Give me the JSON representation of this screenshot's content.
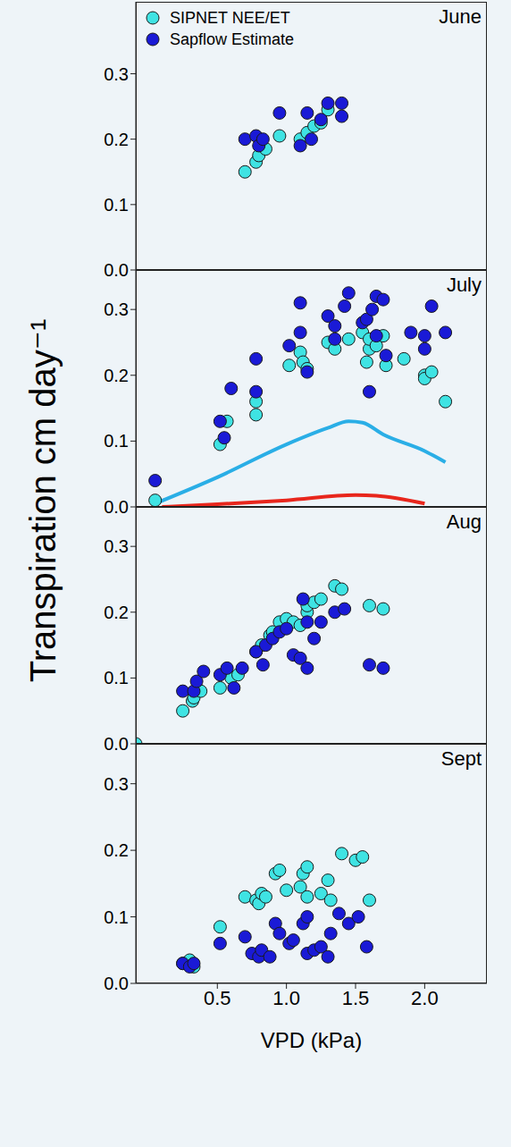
{
  "ylabel": "Transpiration cm day⁻¹",
  "chart_data": [
    {
      "type": "scatter",
      "title": "June",
      "xlim": [
        -0.09,
        2.45
      ],
      "ylim": [
        0,
        0.41
      ],
      "yticks": [
        {
          "value": 0,
          "label": "0.0"
        },
        0.1,
        0.2,
        0.3
      ],
      "tick_labels": "y",
      "legend": "upper left",
      "marker": "circle",
      "series": [
        {
          "name": "SIPNET NEE/ET",
          "color": "#3fe3e3",
          "x": [
            0.7,
            0.78,
            0.8,
            0.85,
            0.95,
            1.1,
            1.15,
            1.2,
            1.25,
            1.3
          ],
          "values": [
            0.15,
            0.165,
            0.175,
            0.185,
            0.205,
            0.2,
            0.21,
            0.22,
            0.225,
            0.245
          ]
        },
        {
          "name": "Sapflow Estimate",
          "color": "#1a1ad6",
          "x": [
            0.7,
            0.78,
            0.8,
            0.83,
            0.95,
            1.1,
            1.15,
            1.18,
            1.25,
            1.3,
            1.4,
            1.4
          ],
          "values": [
            0.2,
            0.205,
            0.19,
            0.2,
            0.24,
            0.19,
            0.24,
            0.2,
            0.23,
            0.255,
            0.255,
            0.235
          ]
        }
      ]
    },
    {
      "type": "scatter",
      "title": "July",
      "xlim": [
        -0.09,
        2.45
      ],
      "ylim": [
        0,
        0.36
      ],
      "yticks": [
        {
          "value": 0,
          "label": "0.0"
        },
        0.1,
        0.2,
        0.3
      ],
      "tick_labels": "y",
      "marker": "circle",
      "series": [
        {
          "name": "SIPNET NEE/ET",
          "color": "#3fe3e3",
          "x": [
            0.05,
            0.52,
            0.57,
            0.78,
            0.78,
            1.02,
            1.1,
            1.12,
            1.15,
            1.3,
            1.35,
            1.45,
            1.55,
            1.58,
            1.6,
            1.6,
            1.65,
            1.7,
            1.72,
            1.85,
            2.0,
            2.0,
            2.05,
            2.15
          ],
          "values": [
            0.01,
            0.095,
            0.13,
            0.14,
            0.16,
            0.215,
            0.235,
            0.22,
            0.21,
            0.25,
            0.24,
            0.255,
            0.265,
            0.22,
            0.24,
            0.255,
            0.245,
            0.26,
            0.215,
            0.225,
            0.2,
            0.195,
            0.205,
            0.16
          ]
        },
        {
          "name": "Sapflow Estimate",
          "color": "#1a1ad6",
          "x": [
            0.05,
            0.52,
            0.55,
            0.6,
            0.78,
            0.78,
            1.02,
            1.1,
            1.1,
            1.15,
            1.3,
            1.35,
            1.35,
            1.42,
            1.45,
            1.55,
            1.58,
            1.6,
            1.62,
            1.65,
            1.65,
            1.7,
            1.72,
            1.9,
            2.0,
            2.0,
            2.05,
            2.15
          ],
          "values": [
            0.04,
            0.13,
            0.105,
            0.18,
            0.225,
            0.175,
            0.245,
            0.31,
            0.265,
            0.205,
            0.29,
            0.255,
            0.275,
            0.305,
            0.325,
            0.28,
            0.285,
            0.175,
            0.3,
            0.26,
            0.32,
            0.315,
            0.23,
            0.265,
            0.26,
            0.24,
            0.305,
            0.265
          ]
        },
        {
          "type": "line",
          "line_style": "solid",
          "color": "#2aaee6",
          "x": [
            0.05,
            0.5,
            1.0,
            1.3,
            1.45,
            1.55,
            1.7,
            2.0,
            2.15
          ],
          "values": [
            0.005,
            0.045,
            0.095,
            0.12,
            0.13,
            0.128,
            0.11,
            0.085,
            0.068
          ]
        },
        {
          "type": "line",
          "line_style": "solid",
          "color": "#e8261c",
          "x": [
            0.1,
            0.5,
            1.0,
            1.5,
            1.65,
            2.0
          ],
          "values": [
            0,
            0.004,
            0.01,
            0.018,
            0.017,
            0.005
          ]
        }
      ]
    },
    {
      "type": "scatter",
      "title": "Aug",
      "xlim": [
        -0.09,
        2.45
      ],
      "ylim": [
        0,
        0.36
      ],
      "yticks": [
        {
          "value": 0,
          "label": "0.0"
        },
        0.1,
        0.2,
        0.3
      ],
      "tick_labels": "y",
      "marker": "circle",
      "series": [
        {
          "name": "SIPNET NEE/ET",
          "color": "#3fe3e3",
          "x": [
            -0.09,
            0.25,
            0.32,
            0.33,
            0.38,
            0.52,
            0.6,
            0.65,
            0.78,
            0.82,
            0.88,
            0.9,
            0.95,
            1.0,
            1.05,
            1.1,
            1.15,
            1.15,
            1.2,
            1.25,
            1.35,
            1.4,
            1.6,
            1.7
          ],
          "values": [
            0,
            0.05,
            0.065,
            0.07,
            0.08,
            0.085,
            0.1,
            0.105,
            0.14,
            0.15,
            0.165,
            0.17,
            0.185,
            0.19,
            0.185,
            0.18,
            0.2,
            0.21,
            0.215,
            0.22,
            0.24,
            0.235,
            0.21,
            0.205
          ]
        },
        {
          "name": "Sapflow Estimate",
          "color": "#1a1ad6",
          "x": [
            0.25,
            0.33,
            0.35,
            0.4,
            0.52,
            0.57,
            0.62,
            0.68,
            0.78,
            0.83,
            0.85,
            0.9,
            0.95,
            1.0,
            1.05,
            1.1,
            1.12,
            1.15,
            1.15,
            1.2,
            1.25,
            1.35,
            1.42,
            1.6,
            1.7
          ],
          "values": [
            0.08,
            0.08,
            0.095,
            0.11,
            0.105,
            0.115,
            0.085,
            0.115,
            0.14,
            0.12,
            0.15,
            0.16,
            0.17,
            0.175,
            0.135,
            0.13,
            0.22,
            0.185,
            0.115,
            0.16,
            0.185,
            0.2,
            0.205,
            0.12,
            0.115
          ]
        }
      ]
    },
    {
      "type": "scatter",
      "title": "Sept",
      "xlim": [
        -0.09,
        2.45
      ],
      "ylim": [
        0,
        0.36
      ],
      "yticks": [
        {
          "value": 0,
          "label": "0.0"
        },
        0.1,
        0.2,
        0.3
      ],
      "xticks": [
        0.5,
        {
          "value": 1,
          "label": "1.0"
        },
        1.5,
        {
          "value": 2,
          "label": "2.0"
        }
      ],
      "xlabel": "VPD (kPa)",
      "marker": "circle",
      "series": [
        {
          "name": "SIPNET NEE/ET",
          "color": "#3fe3e3",
          "x": [
            0.25,
            0.3,
            0.33,
            0.52,
            0.7,
            0.78,
            0.8,
            0.82,
            0.85,
            0.92,
            0.95,
            1.0,
            1.1,
            1.12,
            1.15,
            1.15,
            1.25,
            1.3,
            1.32,
            1.4,
            1.5,
            1.55,
            1.6
          ],
          "values": [
            0.03,
            0.035,
            0.025,
            0.085,
            0.13,
            0.125,
            0.12,
            0.135,
            0.13,
            0.165,
            0.17,
            0.14,
            0.145,
            0.165,
            0.175,
            0.13,
            0.135,
            0.155,
            0.125,
            0.195,
            0.185,
            0.19,
            0.125
          ]
        },
        {
          "name": "Sapflow Estimate",
          "color": "#1a1ad6",
          "x": [
            0.25,
            0.3,
            0.33,
            0.52,
            0.7,
            0.75,
            0.8,
            0.82,
            0.88,
            0.92,
            0.95,
            1.02,
            1.05,
            1.12,
            1.15,
            1.15,
            1.2,
            1.25,
            1.3,
            1.32,
            1.38,
            1.45,
            1.52,
            1.58
          ],
          "values": [
            0.03,
            0.025,
            0.03,
            0.06,
            0.07,
            0.045,
            0.04,
            0.05,
            0.04,
            0.09,
            0.075,
            0.06,
            0.065,
            0.09,
            0.045,
            0.1,
            0.05,
            0.055,
            0.04,
            0.075,
            0.105,
            0.09,
            0.1,
            0.055
          ]
        }
      ]
    }
  ]
}
